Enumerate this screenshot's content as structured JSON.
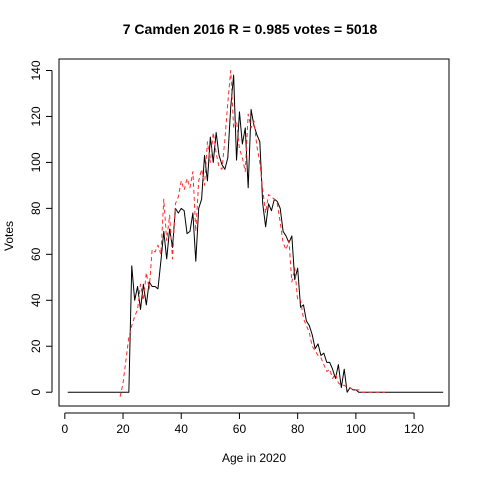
{
  "chart_data": {
    "type": "line",
    "title": "7 Camden 2016 R = 0.985 votes = 5018",
    "xlabel": "Age in 2020",
    "ylabel": "Votes",
    "xlim": [
      -2,
      132
    ],
    "ylim": [
      -6,
      145
    ],
    "x_ticks": [
      0,
      20,
      40,
      60,
      80,
      100,
      120
    ],
    "y_ticks": [
      0,
      20,
      40,
      60,
      80,
      100,
      120,
      140
    ],
    "grid": false,
    "legend": "none",
    "series": [
      {
        "style": "solid",
        "color": "#000000",
        "x": [
          1,
          2,
          3,
          4,
          5,
          6,
          7,
          8,
          9,
          10,
          11,
          12,
          13,
          14,
          15,
          16,
          17,
          18,
          19,
          20,
          21,
          22,
          23,
          24,
          25,
          26,
          27,
          28,
          29,
          30,
          31,
          32,
          33,
          34,
          35,
          36,
          37,
          38,
          39,
          40,
          41,
          42,
          43,
          44,
          45,
          46,
          47,
          48,
          49,
          50,
          51,
          52,
          53,
          54,
          55,
          56,
          57,
          58,
          59,
          60,
          61,
          62,
          63,
          64,
          65,
          66,
          67,
          68,
          69,
          70,
          71,
          72,
          73,
          74,
          75,
          76,
          77,
          78,
          79,
          80,
          81,
          82,
          83,
          84,
          85,
          86,
          87,
          88,
          89,
          90,
          91,
          92,
          93,
          94,
          95,
          96,
          97,
          98,
          99,
          100,
          101,
          102,
          103,
          104,
          105,
          106,
          107,
          108,
          109,
          110,
          111,
          112,
          113,
          114,
          115,
          116,
          117,
          118,
          119,
          120,
          121,
          122,
          123,
          124,
          125,
          126,
          127,
          128,
          129,
          130
        ],
        "y": [
          0,
          0,
          0,
          0,
          0,
          0,
          0,
          0,
          0,
          0,
          0,
          0,
          0,
          0,
          0,
          0,
          0,
          0,
          0,
          0,
          0,
          0,
          55,
          40,
          46,
          36,
          47,
          38,
          48,
          46,
          46,
          45,
          57,
          70,
          58,
          71,
          63,
          80,
          78,
          80,
          79,
          69,
          70,
          78,
          57,
          80,
          84,
          103,
          92,
          111,
          100,
          113,
          103,
          99,
          97,
          102,
          124,
          138,
          101,
          122,
          108,
          115,
          89,
          123,
          116,
          112,
          109,
          82,
          72,
          82,
          79,
          84,
          83,
          80,
          70,
          68,
          65,
          68,
          49,
          54,
          37,
          38,
          31,
          29,
          25,
          19,
          21,
          16,
          17,
          13,
          13,
          10,
          6,
          12,
          2,
          10,
          0,
          2,
          1,
          1,
          0,
          0,
          0,
          0,
          0,
          0,
          0,
          0,
          0,
          0,
          0,
          0,
          0,
          0,
          0,
          0,
          0,
          0,
          0,
          0,
          0,
          0,
          0,
          0,
          0,
          0,
          0,
          0,
          0,
          0
        ]
      },
      {
        "style": "dashed",
        "color": "#ff2a2a",
        "x": [
          19,
          20,
          21,
          22,
          23,
          24,
          25,
          26,
          27,
          28,
          29,
          30,
          31,
          32,
          33,
          34,
          35,
          36,
          37,
          38,
          39,
          40,
          41,
          42,
          43,
          44,
          45,
          46,
          47,
          48,
          49,
          50,
          51,
          52,
          53,
          54,
          55,
          56,
          57,
          58,
          59,
          60,
          61,
          62,
          63,
          64,
          65,
          66,
          67,
          68,
          69,
          70,
          71,
          72,
          73,
          74,
          75,
          76,
          77,
          78,
          79,
          80,
          81,
          82,
          83,
          84,
          85,
          86,
          87,
          88,
          89,
          90,
          91,
          92,
          93,
          94,
          95,
          96,
          97,
          98,
          99,
          100,
          101,
          102,
          103,
          104,
          105,
          106,
          107,
          108,
          109,
          110
        ],
        "y": [
          -2,
          4,
          14,
          24,
          29,
          33,
          36,
          47,
          40,
          52,
          45,
          62,
          61,
          64,
          60,
          84,
          66,
          77,
          58,
          82,
          85,
          92,
          88,
          93,
          89,
          96,
          70,
          92,
          97,
          90,
          109,
          100,
          113,
          104,
          98,
          97,
          110,
          126,
          140,
          115,
          118,
          106,
          102,
          96,
          121,
          115,
          118,
          107,
          100,
          88,
          78,
          86,
          85,
          84,
          82,
          74,
          65,
          62,
          66,
          48,
          54,
          40,
          40,
          32,
          29,
          26,
          20,
          18,
          16,
          15,
          12,
          9,
          10,
          6,
          8,
          4,
          3,
          3,
          2,
          2,
          1,
          1,
          1,
          0,
          0,
          0,
          0,
          0,
          0,
          0,
          0,
          0
        ]
      }
    ]
  }
}
